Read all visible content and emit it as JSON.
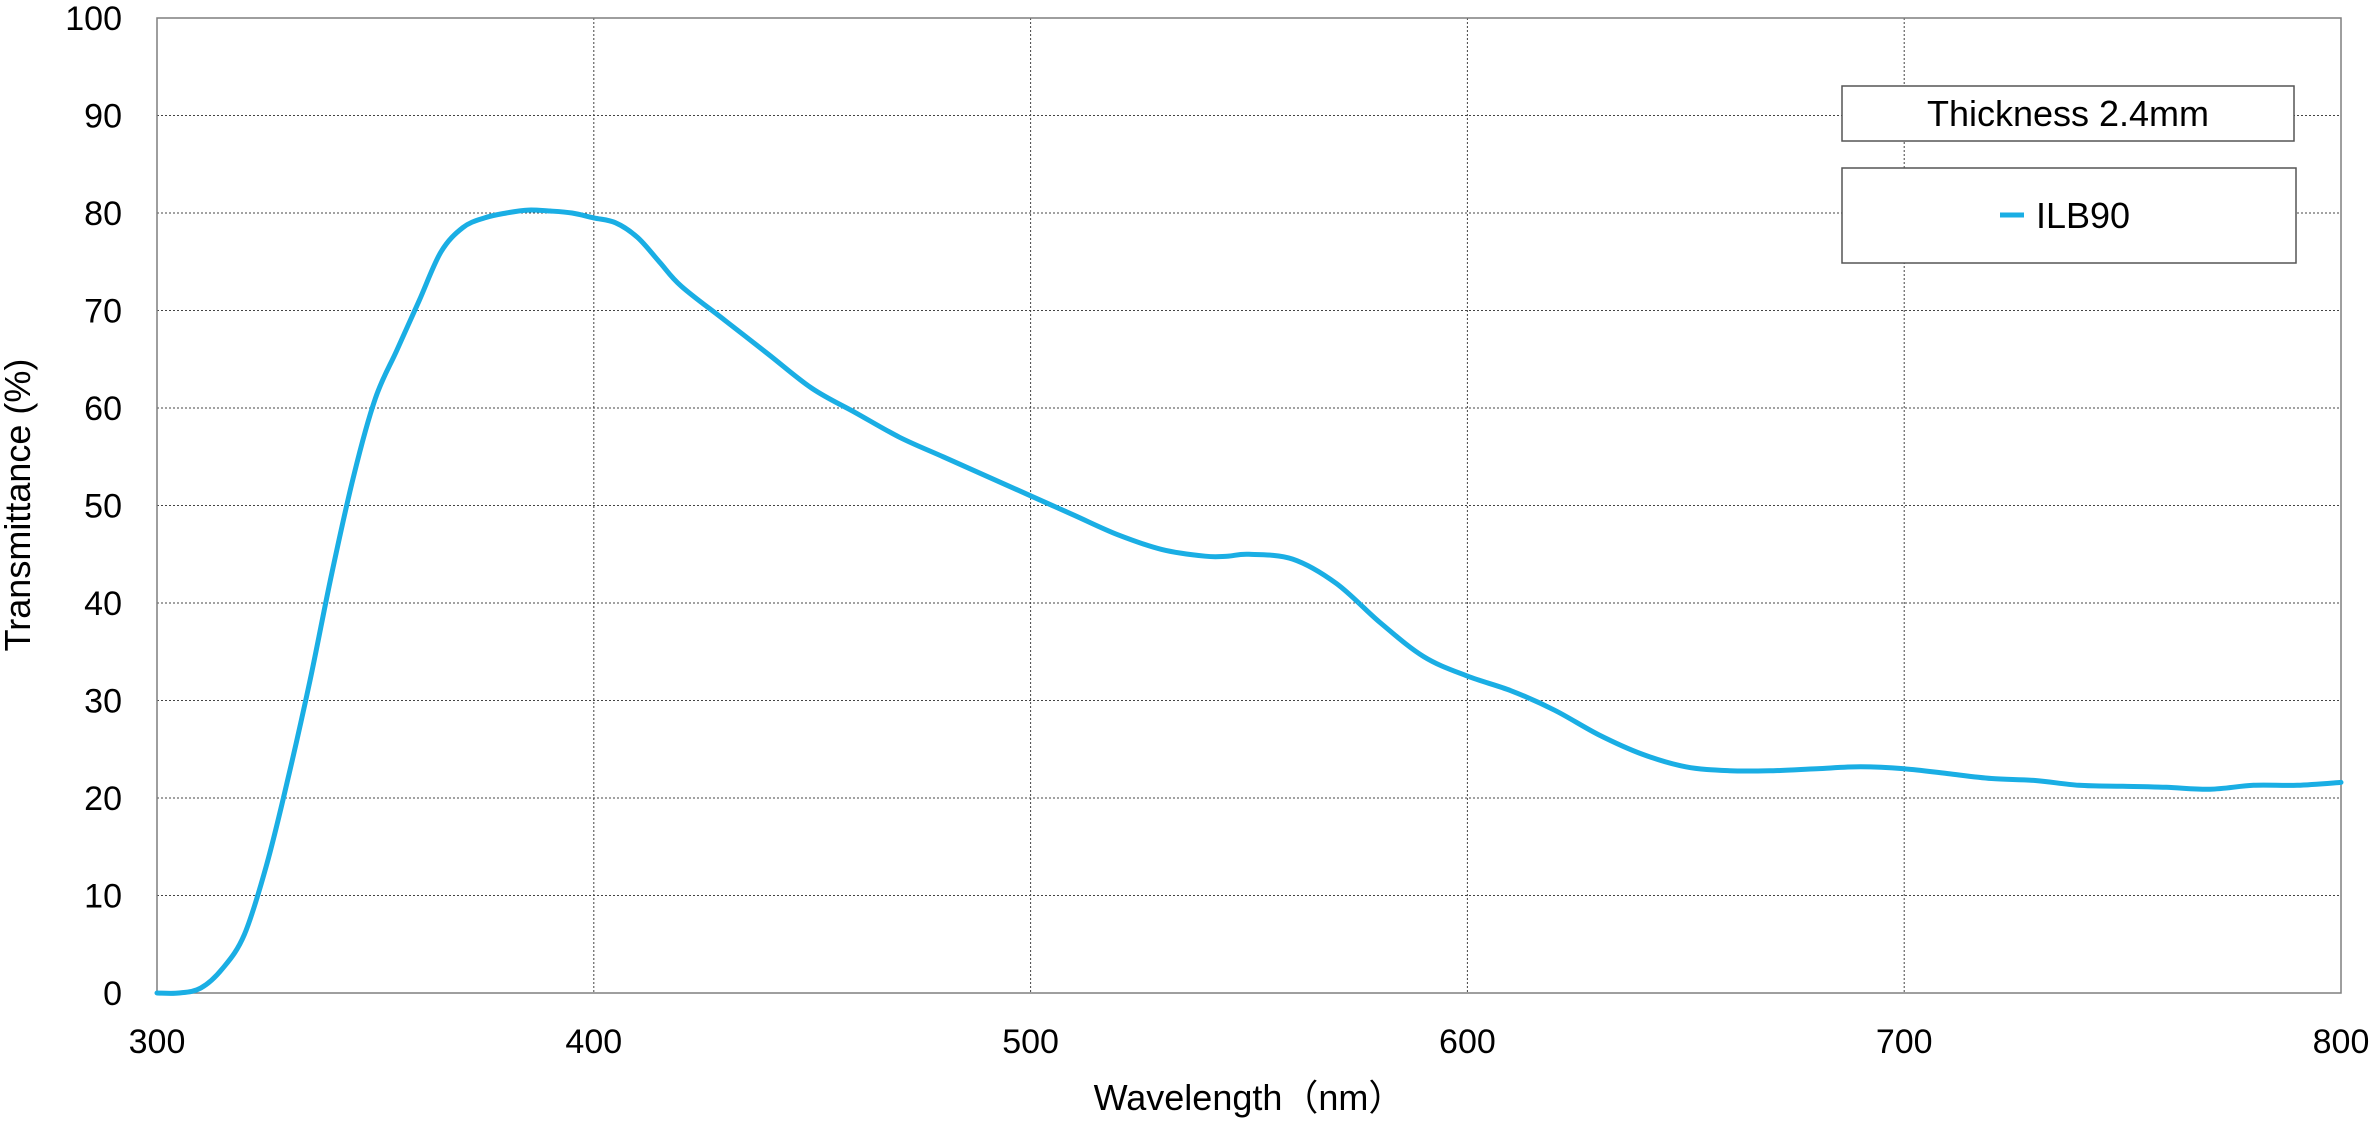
{
  "chart_data": {
    "type": "line",
    "xlabel": "Wavelength（nm）",
    "ylabel": "Transmittance (%)",
    "xlim": [
      300,
      800
    ],
    "ylim": [
      0,
      100
    ],
    "x_ticks": [
      "300",
      "400",
      "500",
      "600",
      "700",
      "800"
    ],
    "y_ticks": [
      "0",
      "10",
      "20",
      "30",
      "40",
      "50",
      "60",
      "70",
      "80",
      "90",
      "100"
    ],
    "grid": true,
    "legend_position": "top-right",
    "annotation": "Thickness  2.4mm",
    "color": "#1aaee4",
    "series": [
      {
        "name": "ILB90",
        "x": [
          300,
          305,
          310,
          315,
          320,
          325,
          330,
          335,
          340,
          345,
          350,
          355,
          360,
          365,
          370,
          375,
          380,
          385,
          390,
          395,
          400,
          405,
          410,
          415,
          420,
          430,
          440,
          450,
          460,
          470,
          480,
          490,
          500,
          510,
          520,
          530,
          540,
          545,
          550,
          560,
          570,
          580,
          590,
          600,
          610,
          620,
          630,
          640,
          650,
          660,
          670,
          680,
          690,
          700,
          710,
          720,
          730,
          740,
          750,
          760,
          770,
          780,
          790,
          800
        ],
        "y": [
          0,
          0,
          0.5,
          2.5,
          6,
          13,
          22,
          32,
          43,
          53,
          61,
          66,
          71,
          76,
          78.5,
          79.5,
          80,
          80.3,
          80.2,
          80,
          79.5,
          79,
          77.5,
          75,
          72.5,
          69,
          65.5,
          62,
          59.5,
          57,
          55,
          53,
          51,
          49,
          47,
          45.5,
          44.8,
          44.8,
          45,
          44.5,
          42,
          38,
          34.5,
          32.5,
          31,
          29,
          26.5,
          24.5,
          23.2,
          22.8,
          22.8,
          23,
          23.2,
          23,
          22.5,
          22,
          21.8,
          21.3,
          21.2,
          21.1,
          20.9,
          21.3,
          21.3,
          21.6
        ]
      }
    ]
  }
}
